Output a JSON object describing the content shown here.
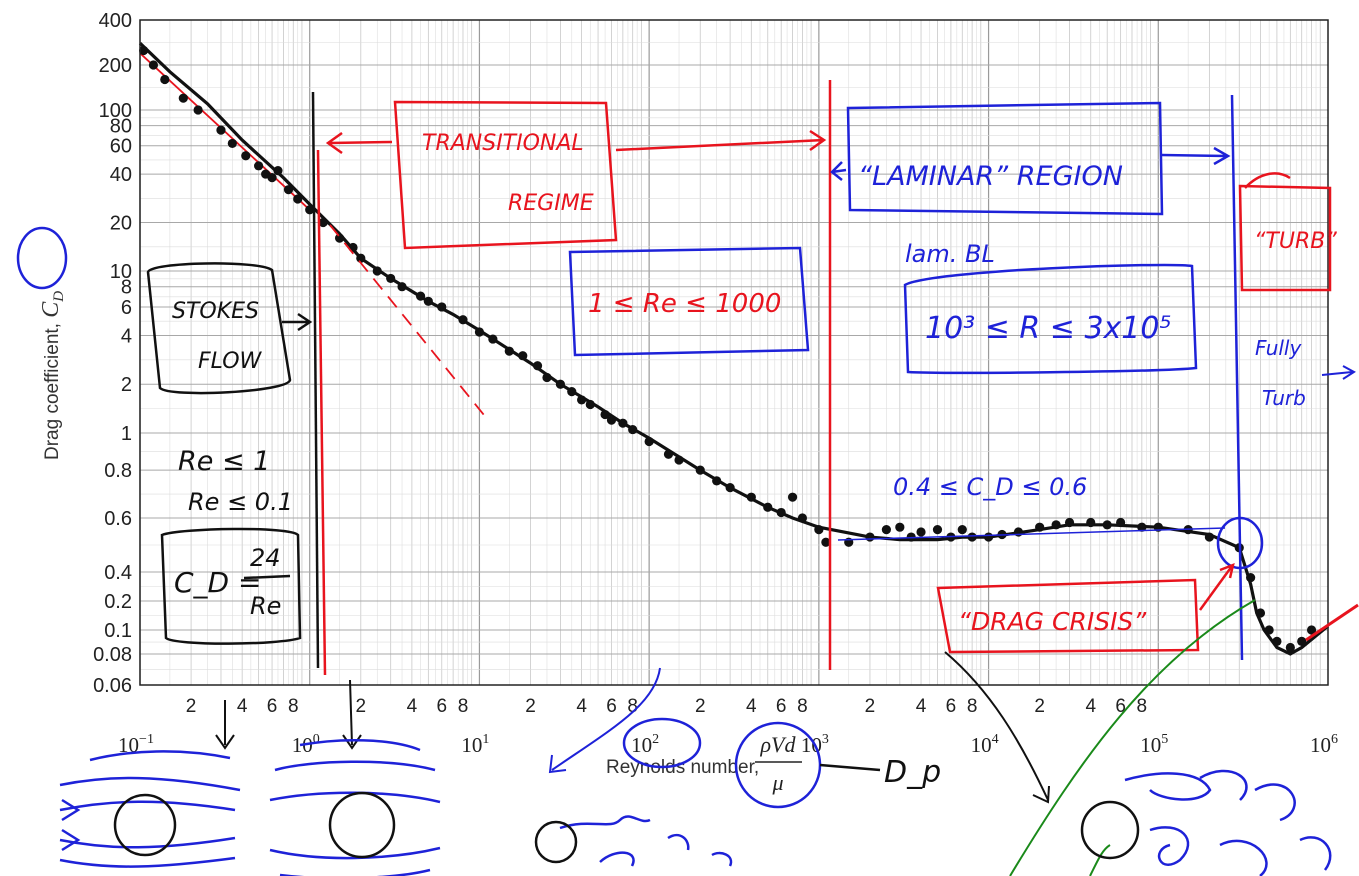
{
  "chart_data": {
    "type": "scatter",
    "x_scale": "log",
    "y_scale": "log",
    "xlim": [
      0.1,
      1000000
    ],
    "ylim": [
      0.06,
      400
    ],
    "grid": true,
    "ylabel": "Drag coefficient, ",
    "ylabel_symbol": "C",
    "ylabel_sub": "D",
    "xlabel": "Reynolds number,",
    "xlabel_fraction": {
      "numerator": "ρVd",
      "denominator": "μ"
    },
    "y_tick_labels": [
      "400",
      "200",
      "100",
      "80",
      "60",
      "40",
      "20",
      "10",
      "8",
      "6",
      "4",
      "2",
      "1",
      "0.8",
      "0.6",
      "0.4",
      "0.2",
      "0.1",
      "0.08",
      "0.06"
    ],
    "x_minor_tick_labels": [
      "2",
      "4",
      "6",
      "8"
    ],
    "x_decade_ticks": [
      {
        "base": "10",
        "exp": "−1"
      },
      {
        "base": "10",
        "exp": "0"
      },
      {
        "base": "10",
        "exp": "1"
      },
      {
        "base": "10",
        "exp": "2"
      },
      {
        "base": "10",
        "exp": "3"
      },
      {
        "base": "10",
        "exp": "4"
      },
      {
        "base": "10",
        "exp": "5"
      },
      {
        "base": "10",
        "exp": "6"
      }
    ],
    "series": [
      {
        "kind": "measured",
        "points": [
          [
            0.105,
            250
          ],
          [
            0.12,
            200
          ],
          [
            0.14,
            160
          ],
          [
            0.18,
            120
          ],
          [
            0.22,
            100
          ],
          [
            0.3,
            75
          ],
          [
            0.35,
            62
          ],
          [
            0.42,
            52
          ],
          [
            0.5,
            45
          ],
          [
            0.55,
            40
          ],
          [
            0.6,
            38
          ],
          [
            0.65,
            42
          ],
          [
            0.75,
            32
          ],
          [
            0.85,
            28
          ],
          [
            1.0,
            24
          ],
          [
            1.2,
            20
          ],
          [
            1.5,
            16
          ],
          [
            1.8,
            14
          ],
          [
            2.0,
            12
          ],
          [
            2.5,
            10
          ],
          [
            3.0,
            9
          ],
          [
            3.5,
            8
          ],
          [
            4.5,
            7
          ],
          [
            5.0,
            6.5
          ],
          [
            6.0,
            6
          ],
          [
            8.0,
            5
          ],
          [
            10,
            4.2
          ],
          [
            12,
            3.8
          ],
          [
            15,
            3.2
          ],
          [
            18,
            3.0
          ],
          [
            22,
            2.6
          ],
          [
            25,
            2.2
          ],
          [
            30,
            2.0
          ],
          [
            35,
            1.8
          ],
          [
            40,
            1.6
          ],
          [
            45,
            1.5
          ],
          [
            55,
            1.3
          ],
          [
            60,
            1.2
          ],
          [
            70,
            1.15
          ],
          [
            80,
            1.05
          ],
          [
            100,
            0.95
          ],
          [
            130,
            0.88
          ],
          [
            150,
            0.85
          ],
          [
            200,
            0.8
          ],
          [
            250,
            0.75
          ],
          [
            300,
            0.72
          ],
          [
            400,
            0.68
          ],
          [
            500,
            0.64
          ],
          [
            600,
            0.62
          ],
          [
            700,
            0.68
          ],
          [
            800,
            0.6
          ],
          [
            1000,
            0.55
          ],
          [
            1100,
            0.5
          ],
          [
            1500,
            0.5
          ],
          [
            2000,
            0.52
          ],
          [
            2500,
            0.55
          ],
          [
            3000,
            0.56
          ],
          [
            3500,
            0.52
          ],
          [
            4000,
            0.54
          ],
          [
            5000,
            0.55
          ],
          [
            6000,
            0.52
          ],
          [
            7000,
            0.55
          ],
          [
            8000,
            0.52
          ],
          [
            10000,
            0.52
          ],
          [
            12000,
            0.53
          ],
          [
            15000,
            0.54
          ],
          [
            20000,
            0.56
          ],
          [
            25000,
            0.57
          ],
          [
            30000,
            0.58
          ],
          [
            40000,
            0.58
          ],
          [
            50000,
            0.57
          ],
          [
            60000,
            0.58
          ],
          [
            80000,
            0.56
          ],
          [
            100000,
            0.56
          ],
          [
            150000,
            0.55
          ],
          [
            200000,
            0.52
          ],
          [
            300000,
            0.48
          ],
          [
            350000,
            0.35
          ],
          [
            400000,
            0.15
          ],
          [
            450000,
            0.1
          ],
          [
            500000,
            0.09
          ],
          [
            600000,
            0.085
          ],
          [
            700000,
            0.09
          ],
          [
            800000,
            0.1
          ]
        ]
      },
      {
        "kind": "curve",
        "points": [
          [
            0.1,
            280
          ],
          [
            0.15,
            180
          ],
          [
            0.25,
            110
          ],
          [
            0.4,
            65
          ],
          [
            0.7,
            38
          ],
          [
            1.0,
            26
          ],
          [
            1.5,
            17
          ],
          [
            2.0,
            12
          ],
          [
            3.0,
            9
          ],
          [
            5.0,
            6.5
          ],
          [
            7.0,
            5.4
          ],
          [
            10,
            4.3
          ],
          [
            20,
            2.7
          ],
          [
            30,
            2.0
          ],
          [
            50,
            1.45
          ],
          [
            70,
            1.15
          ],
          [
            100,
            0.97
          ],
          [
            200,
            0.8
          ],
          [
            300,
            0.72
          ],
          [
            500,
            0.64
          ],
          [
            700,
            0.6
          ],
          [
            1000,
            0.56
          ],
          [
            2000,
            0.52
          ],
          [
            3000,
            0.51
          ],
          [
            5000,
            0.51
          ],
          [
            7000,
            0.52
          ],
          [
            10000,
            0.52
          ],
          [
            20000,
            0.55
          ],
          [
            30000,
            0.57
          ],
          [
            50000,
            0.57
          ],
          [
            100000,
            0.56
          ],
          [
            200000,
            0.53
          ],
          [
            300000,
            0.48
          ],
          [
            350000,
            0.3
          ],
          [
            380000,
            0.15
          ],
          [
            420000,
            0.1
          ],
          [
            500000,
            0.085
          ],
          [
            600000,
            0.08
          ],
          [
            700000,
            0.085
          ],
          [
            1000000,
            0.11
          ]
        ]
      },
      {
        "kind": "stokes-line",
        "points": [
          [
            0.1,
            240
          ],
          [
            1.0,
            24
          ],
          [
            10,
            2.4
          ]
        ]
      }
    ],
    "annotations": {
      "transitional_1": "TRANSITIONAL",
      "transitional_2": "REGIME",
      "laminar": "“LAMINAR” REGION",
      "turb": "“TURB”",
      "fully_1": "Fully",
      "fully_2": "Turb",
      "stokes_1": "STOKES",
      "stokes_2": "FLOW",
      "re_range": "1 ≤ Re ≤ 1000",
      "lam_bl": "lam. BL",
      "r_range": "10³ ≤ R ≤ 3x10⁵",
      "re_le_1": "Re ≤ 1",
      "re_le_01": "Re ≤ 0.1",
      "cd_formula_left": "C_D =",
      "cd_formula_num": "24",
      "cd_formula_den": "Re",
      "cd_band": "0.4 ≤ C_D ≤ 0.6",
      "drag_crisis": "“DRAG CRISIS”",
      "dp": "D_p"
    }
  }
}
